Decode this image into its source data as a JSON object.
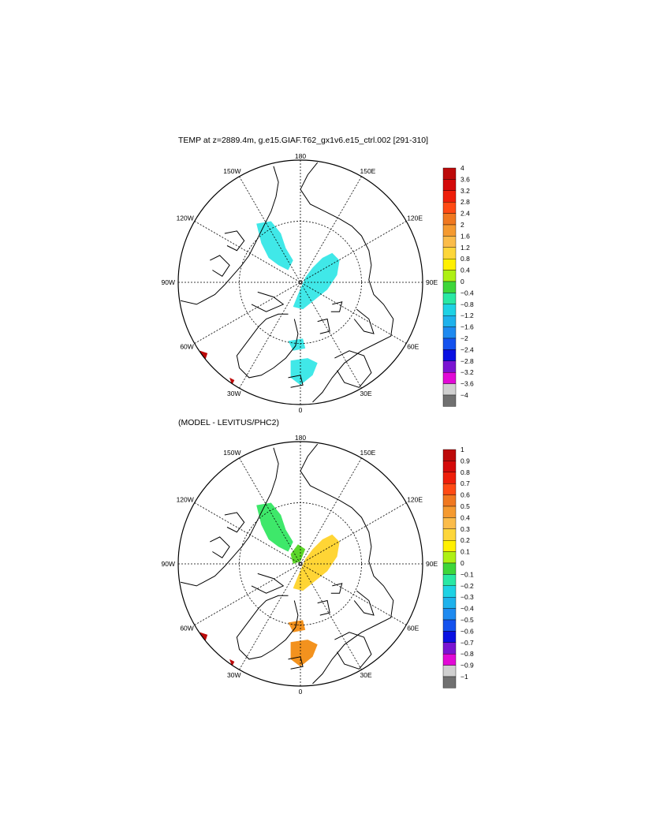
{
  "panels": [
    {
      "id": "top",
      "title": "TEMP at z=2889.4m, g.e15.GIAF.T62_gx1v6.e15_ctrl.002 [291-310]",
      "colorbar": {
        "labels": [
          "4",
          "3.6",
          "3.2",
          "2.8",
          "2.4",
          "2",
          "1.6",
          "1.2",
          "0.8",
          "0.4",
          "0",
          "−0.4",
          "−0.8",
          "−1.2",
          "−1.6",
          "−2",
          "−2.4",
          "−2.8",
          "−3.2",
          "−3.6",
          "−4"
        ]
      },
      "anomalies": [
        {
          "region": "canada-basin",
          "color": "#40e8e8"
        },
        {
          "region": "eurasian-basin",
          "color": "#40e8e8"
        },
        {
          "region": "fram-strait",
          "color": "#40e8e8"
        },
        {
          "region": "greenland-sea",
          "color": "#40e8e8"
        }
      ]
    },
    {
      "id": "bottom",
      "title": "(MODEL - LEVITUS/PHC2)",
      "colorbar": {
        "labels": [
          "1",
          "0.9",
          "0.8",
          "0.7",
          "0.6",
          "0.5",
          "0.4",
          "0.3",
          "0.2",
          "0.1",
          "0",
          "−0.1",
          "−0.2",
          "−0.3",
          "−0.4",
          "−0.5",
          "−0.6",
          "−0.7",
          "−0.8",
          "−0.9",
          "−1"
        ]
      },
      "anomalies": [
        {
          "region": "canada-basin",
          "color": "#3ee86a"
        },
        {
          "region": "eurasian-basin",
          "color": "#ffd535"
        },
        {
          "region": "lomonosov-ridge",
          "color": "#5cd62a"
        },
        {
          "region": "fram-strait",
          "color": "#f3921e"
        },
        {
          "region": "greenland-sea",
          "color": "#f3921e"
        }
      ]
    }
  ],
  "map_labels": {
    "lon_180": "180",
    "lon_150w": "150W",
    "lon_150e": "150E",
    "lon_120w": "120W",
    "lon_120e": "120E",
    "lon_90w": "90W",
    "lon_90e": "90E",
    "lon_60w": "60W",
    "lon_60e": "60E",
    "lon_30w": "30W",
    "lon_30e": "30E",
    "lon_0": "0"
  },
  "colorbar_colors": [
    "#bd0a0a",
    "#d40a0a",
    "#ee1e0a",
    "#ff4a14",
    "#f07820",
    "#f59a30",
    "#fbbc4a",
    "#fdd63a",
    "#fff000",
    "#aef014",
    "#3ed63a",
    "#29e8a4",
    "#1ed2e4",
    "#1eb2ec",
    "#1e8af0",
    "#1452ee",
    "#0a10e2",
    "#7a14d2",
    "#e20ad6",
    "#d0d0d0",
    "#707070"
  ]
}
